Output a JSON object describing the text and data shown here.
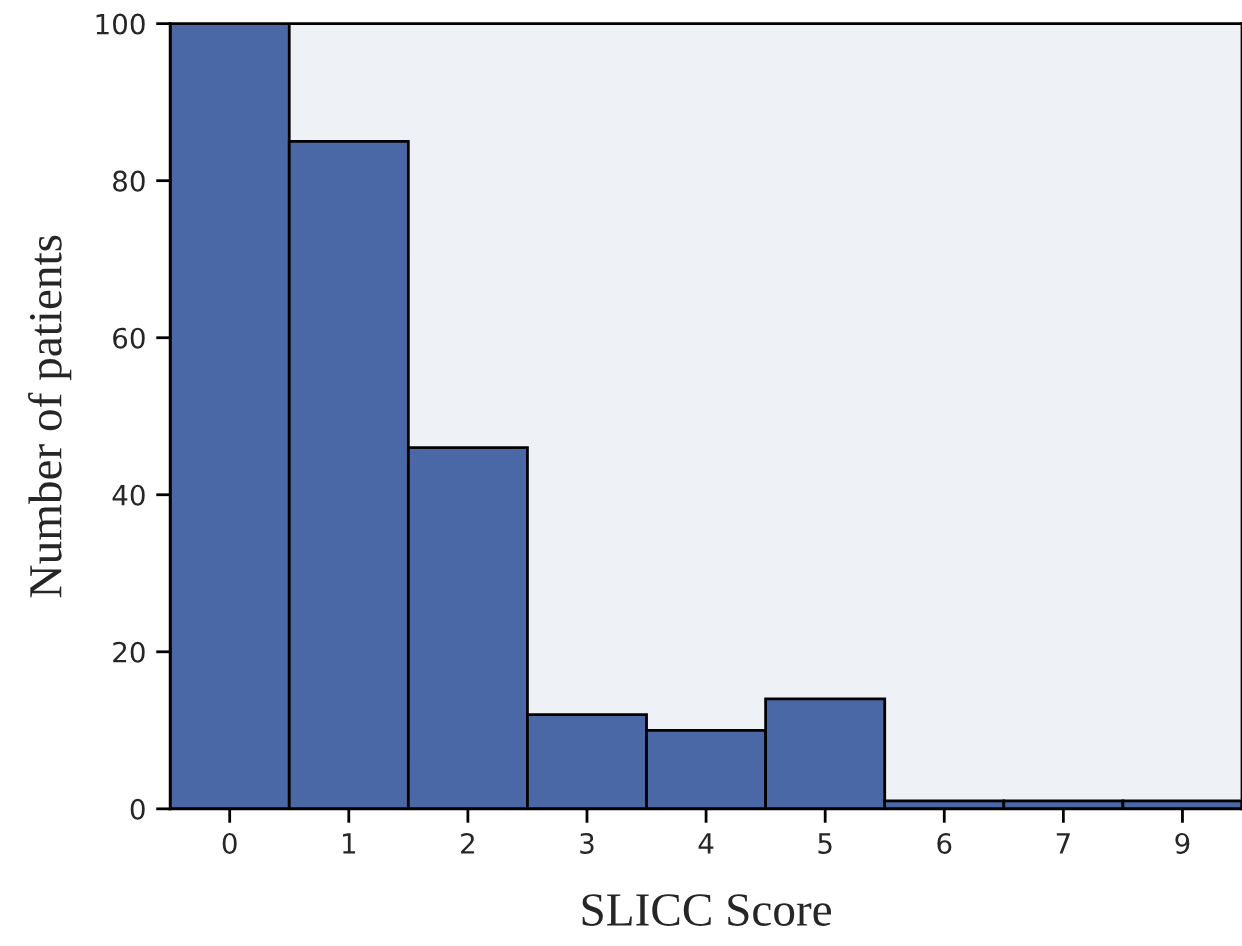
{
  "chart_data": {
    "type": "bar",
    "xlabel": "SLICC Score",
    "ylabel": "Number of patients",
    "categories": [
      "0",
      "1",
      "2",
      "3",
      "4",
      "5",
      "6",
      "7",
      "9"
    ],
    "values": [
      100,
      85,
      46,
      12,
      10,
      14,
      1,
      1,
      1
    ],
    "color": "#4a67a6",
    "ylim": [
      0,
      100
    ],
    "yticks": [
      0,
      20,
      40,
      60,
      80,
      100
    ],
    "grid": false
  }
}
